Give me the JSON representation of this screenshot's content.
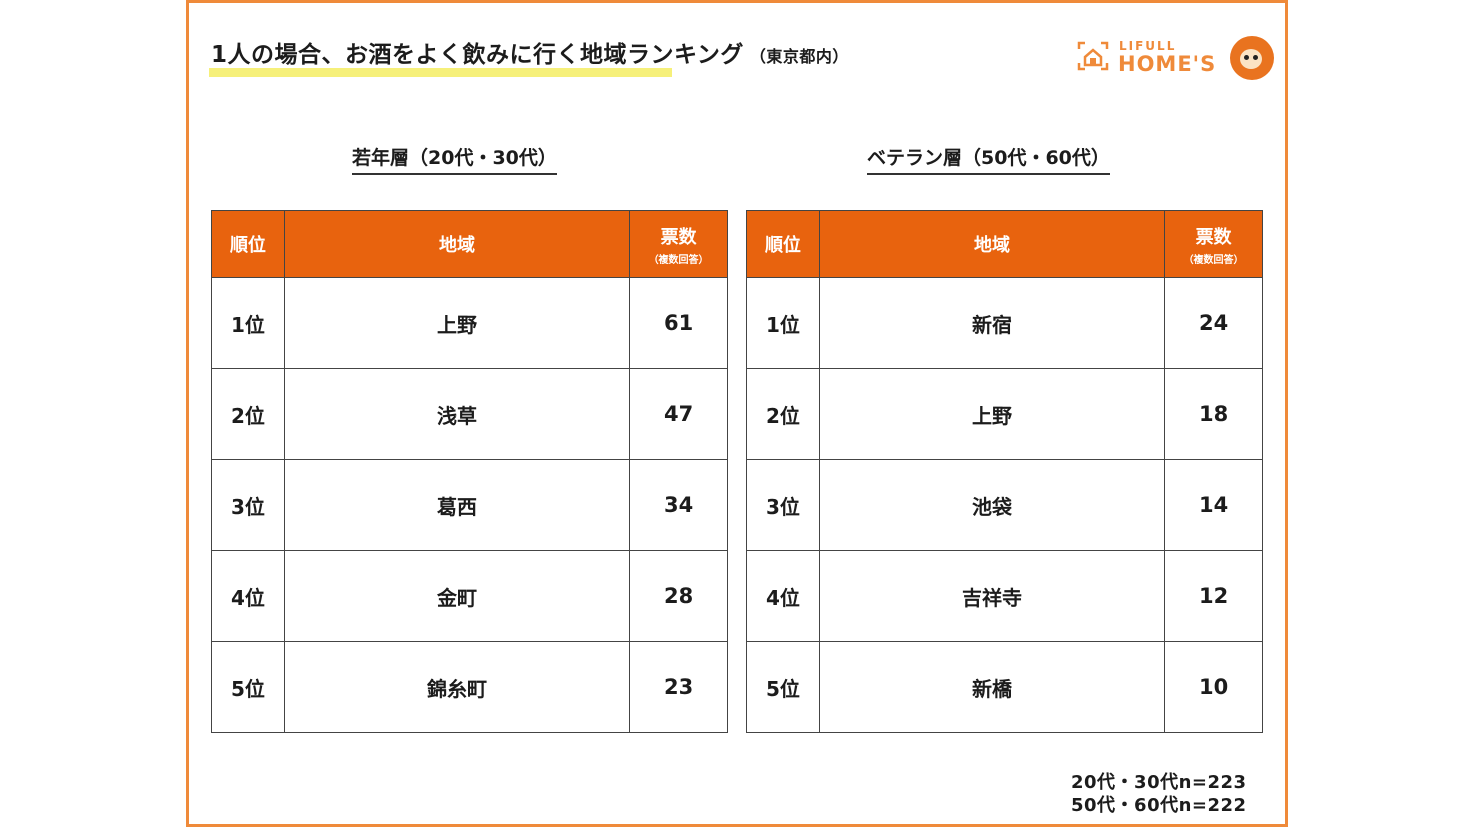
{
  "title": {
    "main": "1人の場合、お酒をよく飲みに行く地域ランキング",
    "sub": "（東京都内）"
  },
  "logo": {
    "small_text": "LIFULL",
    "big_text": "HOME'S",
    "accent_color": "#ef8a3a"
  },
  "tables": [
    {
      "section_title": "若年層（20代・30代）",
      "headers": {
        "rank": "順位",
        "area": "地域",
        "votes": "票数",
        "votes_sub": "（複数回答）"
      },
      "rows": [
        {
          "rank": "1位",
          "area": "上野",
          "votes": "61"
        },
        {
          "rank": "2位",
          "area": "浅草",
          "votes": "47"
        },
        {
          "rank": "3位",
          "area": "葛西",
          "votes": "34"
        },
        {
          "rank": "4位",
          "area": "金町",
          "votes": "28"
        },
        {
          "rank": "5位",
          "area": "錦糸町",
          "votes": "23"
        }
      ]
    },
    {
      "section_title": "ベテラン層（50代・60代）",
      "headers": {
        "rank": "順位",
        "area": "地域",
        "votes": "票数",
        "votes_sub": "（複数回答）"
      },
      "rows": [
        {
          "rank": "1位",
          "area": "新宿",
          "votes": "24"
        },
        {
          "rank": "2位",
          "area": "上野",
          "votes": "18"
        },
        {
          "rank": "3位",
          "area": "池袋",
          "votes": "14"
        },
        {
          "rank": "4位",
          "area": "吉祥寺",
          "votes": "12"
        },
        {
          "rank": "5位",
          "area": "新橋",
          "votes": "10"
        }
      ]
    }
  ],
  "footnote": {
    "line1": "20代・30代n=223",
    "line2": "50代・60代n=222"
  },
  "colors": {
    "header_bg": "#e8630e",
    "border": "#ef8a3a",
    "highlight": "#f6f07a"
  }
}
